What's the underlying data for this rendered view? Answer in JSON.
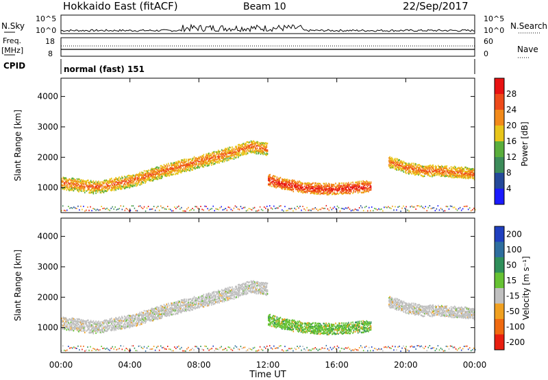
{
  "header": {
    "radar": "Hokkaido East (fitACF)",
    "beam": "Beam 10",
    "date": "22/Sep/2017"
  },
  "noise_panel": {
    "left_label": "N.Sky",
    "right_label": "N.Search",
    "left_ticks": [
      "10^5",
      "10^0"
    ],
    "right_ticks": [
      "10^5",
      "10^0"
    ]
  },
  "freq_panel": {
    "left_label_1": "Freq.",
    "left_label_2": "[MHz]",
    "right_label": "Nave",
    "left_ticks": [
      "18",
      "8"
    ],
    "right_ticks": [
      "60",
      "0"
    ]
  },
  "cpid_panel": {
    "label": "CPID",
    "value": "normal (fast) 151"
  },
  "chart_data": [
    {
      "type": "heatmap",
      "panel": "power",
      "ylabel": "Slant Range [km]",
      "y_ticks": [
        "1000",
        "2000",
        "3000",
        "4000"
      ],
      "ylim": [
        180,
        4600
      ],
      "colorbar_label": "Power [dB]",
      "colorbar_ticks": [
        "4",
        "8",
        "12",
        "16",
        "20",
        "24",
        "28"
      ],
      "colors": [
        "#1a1aff",
        "#24499a",
        "#3c8c5a",
        "#5aae3c",
        "#e8c51a",
        "#f28a1a",
        "#ee4a1a",
        "#e81212"
      ],
      "x_ticks": [
        "00:00",
        "04:00",
        "08:00",
        "12:00",
        "16:00",
        "20:00",
        "00:00"
      ],
      "x_hours": [
        0,
        4,
        8,
        12,
        16,
        20,
        24
      ],
      "echo_bands": [
        {
          "t": [
            0,
            2,
            4,
            6,
            8,
            10,
            11,
            12
          ],
          "km": [
            1200,
            1050,
            1250,
            1600,
            1900,
            2200,
            2400,
            2300
          ],
          "width_km": 400,
          "level": 6
        },
        {
          "t": [
            12,
            13,
            14,
            15,
            16,
            17,
            18
          ],
          "km": [
            1300,
            1150,
            1050,
            1000,
            1000,
            1050,
            1100
          ],
          "width_km": 350,
          "level": 7
        },
        {
          "t": [
            19,
            20,
            21,
            22,
            23,
            24
          ],
          "km": [
            1900,
            1700,
            1600,
            1600,
            1550,
            1500
          ],
          "width_km": 350,
          "level": 6
        }
      ]
    },
    {
      "type": "heatmap",
      "panel": "velocity",
      "ylabel": "Slant Range [km]",
      "xlabel": "Time UT",
      "y_ticks": [
        "1000",
        "2000",
        "3000",
        "4000"
      ],
      "ylim": [
        180,
        4600
      ],
      "colorbar_label": "Velocity [m s⁻¹]",
      "colorbar_ticks": [
        "200",
        "100",
        "50",
        "15",
        "-15",
        "-50",
        "-100",
        "-200"
      ],
      "colors": [
        "#1f3fbf",
        "#2e6e9e",
        "#2f8f5a",
        "#66c233",
        "#c0c0c0",
        "#f0a020",
        "#f06a10",
        "#e81e10"
      ],
      "x_ticks": [
        "00:00",
        "04:00",
        "08:00",
        "12:00",
        "16:00",
        "20:00",
        "00:00"
      ],
      "x_hours": [
        0,
        4,
        8,
        12,
        16,
        20,
        24
      ]
    }
  ]
}
